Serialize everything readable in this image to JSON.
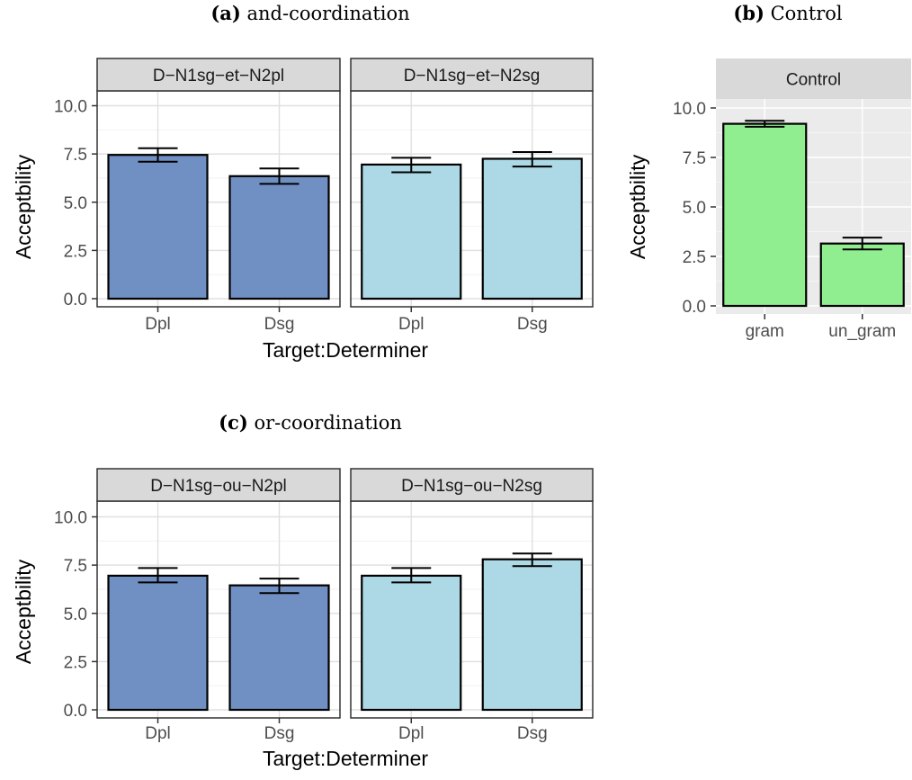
{
  "chart_data": [
    {
      "id": "a",
      "type": "bar",
      "panel_label": "(a)",
      "title": "and-coordination",
      "xlabel": "Target:Determiner",
      "ylabel": "Acceptbility",
      "ylim": [
        0,
        12
      ],
      "yticks": [
        "0.0",
        "2.5",
        "5.0",
        "7.5",
        "10.0"
      ],
      "ytick_values": [
        0,
        2.5,
        5,
        7.5,
        10
      ],
      "grid": true,
      "theme": "bw",
      "facets": [
        {
          "strip": "D−N1sg−et−N2pl",
          "color": "#7090c4",
          "categories": [
            "Dpl",
            "Dsg"
          ],
          "values": [
            7.45,
            6.35
          ],
          "err_low": [
            7.1,
            5.95
          ],
          "err_high": [
            7.8,
            6.75
          ]
        },
        {
          "strip": "D−N1sg−et−N2sg",
          "color": "#add8e6",
          "categories": [
            "Dpl",
            "Dsg"
          ],
          "values": [
            6.95,
            7.25
          ],
          "err_low": [
            6.55,
            6.85
          ],
          "err_high": [
            7.3,
            7.6
          ]
        }
      ]
    },
    {
      "id": "b",
      "type": "bar",
      "panel_label": "(b)",
      "title": "Control",
      "xlabel": "",
      "ylabel": "Acceptbility",
      "ylim": [
        0,
        12
      ],
      "yticks": [
        "0.0",
        "2.5",
        "5.0",
        "7.5",
        "10.0"
      ],
      "ytick_values": [
        0,
        2.5,
        5,
        7.5,
        10
      ],
      "grid": true,
      "theme": "grey",
      "facets": [
        {
          "strip": "Control",
          "color": "#90ee90",
          "categories": [
            "gram",
            "un_gram"
          ],
          "values": [
            9.2,
            3.15
          ],
          "err_low": [
            9.05,
            2.85
          ],
          "err_high": [
            9.35,
            3.45
          ]
        }
      ]
    },
    {
      "id": "c",
      "type": "bar",
      "panel_label": "(c)",
      "title": "or-coordination",
      "xlabel": "Target:Determiner",
      "ylabel": "Acceptbility",
      "ylim": [
        0,
        12
      ],
      "yticks": [
        "0.0",
        "2.5",
        "5.0",
        "7.5",
        "10.0"
      ],
      "ytick_values": [
        0,
        2.5,
        5,
        7.5,
        10
      ],
      "grid": true,
      "theme": "bw",
      "facets": [
        {
          "strip": "D−N1sg−ou−N2pl",
          "color": "#7090c4",
          "categories": [
            "Dpl",
            "Dsg"
          ],
          "values": [
            6.95,
            6.45
          ],
          "err_low": [
            6.6,
            6.05
          ],
          "err_high": [
            7.35,
            6.8
          ]
        },
        {
          "strip": "D−N1sg−ou−N2sg",
          "color": "#add8e6",
          "categories": [
            "Dpl",
            "Dsg"
          ],
          "values": [
            6.95,
            7.8
          ],
          "err_low": [
            6.6,
            7.45
          ],
          "err_high": [
            7.35,
            8.1
          ]
        }
      ]
    }
  ]
}
